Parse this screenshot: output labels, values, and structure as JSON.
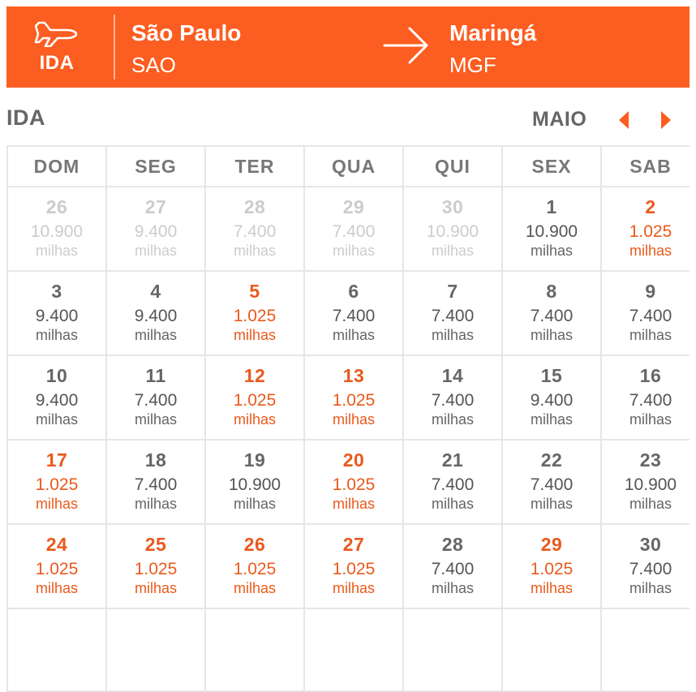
{
  "header": {
    "leg_icon": "airplane-icon",
    "leg_label": "IDA",
    "origin": {
      "city": "São Paulo",
      "code": "SAO"
    },
    "arrow_icon": "arrow-right-icon",
    "destination": {
      "city": "Maringá",
      "code": "MGF"
    }
  },
  "calendar": {
    "title": "IDA",
    "month": "MAIO",
    "prev_icon": "triangle-left-icon",
    "next_icon": "triangle-right-icon",
    "accent_color": "#fc5d20",
    "promo_color": "#e95a1c",
    "weekdays": [
      "DOM",
      "SEG",
      "TER",
      "QUA",
      "QUI",
      "SEX",
      "SAB"
    ],
    "days": [
      {
        "day": "26",
        "price": "10.900",
        "unit": "milhas",
        "status": "past"
      },
      {
        "day": "27",
        "price": "9.400",
        "unit": "milhas",
        "status": "past"
      },
      {
        "day": "28",
        "price": "7.400",
        "unit": "milhas",
        "status": "past"
      },
      {
        "day": "29",
        "price": "7.400",
        "unit": "milhas",
        "status": "past"
      },
      {
        "day": "30",
        "price": "10.900",
        "unit": "milhas",
        "status": "past"
      },
      {
        "day": "1",
        "price": "10.900",
        "unit": "milhas",
        "status": "normal"
      },
      {
        "day": "2",
        "price": "1.025",
        "unit": "milhas",
        "status": "promo"
      },
      {
        "day": "3",
        "price": "9.400",
        "unit": "milhas",
        "status": "normal"
      },
      {
        "day": "4",
        "price": "9.400",
        "unit": "milhas",
        "status": "normal"
      },
      {
        "day": "5",
        "price": "1.025",
        "unit": "milhas",
        "status": "promo"
      },
      {
        "day": "6",
        "price": "7.400",
        "unit": "milhas",
        "status": "normal"
      },
      {
        "day": "7",
        "price": "7.400",
        "unit": "milhas",
        "status": "normal"
      },
      {
        "day": "8",
        "price": "7.400",
        "unit": "milhas",
        "status": "normal"
      },
      {
        "day": "9",
        "price": "7.400",
        "unit": "milhas",
        "status": "normal"
      },
      {
        "day": "10",
        "price": "9.400",
        "unit": "milhas",
        "status": "normal"
      },
      {
        "day": "11",
        "price": "7.400",
        "unit": "milhas",
        "status": "normal"
      },
      {
        "day": "12",
        "price": "1.025",
        "unit": "milhas",
        "status": "promo"
      },
      {
        "day": "13",
        "price": "1.025",
        "unit": "milhas",
        "status": "promo"
      },
      {
        "day": "14",
        "price": "7.400",
        "unit": "milhas",
        "status": "normal"
      },
      {
        "day": "15",
        "price": "9.400",
        "unit": "milhas",
        "status": "normal"
      },
      {
        "day": "16",
        "price": "7.400",
        "unit": "milhas",
        "status": "normal"
      },
      {
        "day": "17",
        "price": "1.025",
        "unit": "milhas",
        "status": "promo"
      },
      {
        "day": "18",
        "price": "7.400",
        "unit": "milhas",
        "status": "normal"
      },
      {
        "day": "19",
        "price": "10.900",
        "unit": "milhas",
        "status": "normal"
      },
      {
        "day": "20",
        "price": "1.025",
        "unit": "milhas",
        "status": "promo"
      },
      {
        "day": "21",
        "price": "7.400",
        "unit": "milhas",
        "status": "normal"
      },
      {
        "day": "22",
        "price": "7.400",
        "unit": "milhas",
        "status": "normal"
      },
      {
        "day": "23",
        "price": "10.900",
        "unit": "milhas",
        "status": "normal"
      },
      {
        "day": "24",
        "price": "1.025",
        "unit": "milhas",
        "status": "promo"
      },
      {
        "day": "25",
        "price": "1.025",
        "unit": "milhas",
        "status": "promo"
      },
      {
        "day": "26",
        "price": "1.025",
        "unit": "milhas",
        "status": "promo"
      },
      {
        "day": "27",
        "price": "1.025",
        "unit": "milhas",
        "status": "promo"
      },
      {
        "day": "28",
        "price": "7.400",
        "unit": "milhas",
        "status": "normal"
      },
      {
        "day": "29",
        "price": "1.025",
        "unit": "milhas",
        "status": "promo"
      },
      {
        "day": "30",
        "price": "7.400",
        "unit": "milhas",
        "status": "normal"
      }
    ]
  }
}
